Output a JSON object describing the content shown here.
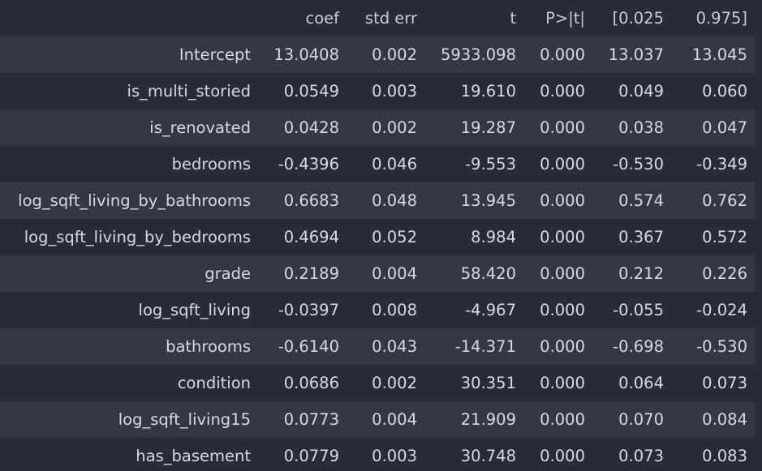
{
  "table": {
    "columns": [
      "",
      "coef",
      "std err",
      "t",
      "P>|t|",
      "[0.025",
      "0.975]"
    ],
    "rows": [
      {
        "name": "Intercept",
        "values": [
          "13.0408",
          "0.002",
          "5933.098",
          "0.000",
          "13.037",
          "13.045"
        ]
      },
      {
        "name": "is_multi_storied",
        "values": [
          "0.0549",
          "0.003",
          "19.610",
          "0.000",
          "0.049",
          "0.060"
        ]
      },
      {
        "name": "is_renovated",
        "values": [
          "0.0428",
          "0.002",
          "19.287",
          "0.000",
          "0.038",
          "0.047"
        ]
      },
      {
        "name": "bedrooms",
        "values": [
          "-0.4396",
          "0.046",
          "-9.553",
          "0.000",
          "-0.530",
          "-0.349"
        ]
      },
      {
        "name": "log_sqft_living_by_bathrooms",
        "values": [
          "0.6683",
          "0.048",
          "13.945",
          "0.000",
          "0.574",
          "0.762"
        ]
      },
      {
        "name": "log_sqft_living_by_bedrooms",
        "values": [
          "0.4694",
          "0.052",
          "8.984",
          "0.000",
          "0.367",
          "0.572"
        ]
      },
      {
        "name": "grade",
        "values": [
          "0.2189",
          "0.004",
          "58.420",
          "0.000",
          "0.212",
          "0.226"
        ]
      },
      {
        "name": "log_sqft_living",
        "values": [
          "-0.0397",
          "0.008",
          "-4.967",
          "0.000",
          "-0.055",
          "-0.024"
        ]
      },
      {
        "name": "bathrooms",
        "values": [
          "-0.6140",
          "0.043",
          "-14.371",
          "0.000",
          "-0.698",
          "-0.530"
        ]
      },
      {
        "name": "condition",
        "values": [
          "0.0686",
          "0.002",
          "30.351",
          "0.000",
          "0.064",
          "0.073"
        ]
      },
      {
        "name": "log_sqft_living15",
        "values": [
          "0.0773",
          "0.004",
          "21.909",
          "0.000",
          "0.070",
          "0.084"
        ]
      },
      {
        "name": "has_basement",
        "values": [
          "0.0779",
          "0.003",
          "30.748",
          "0.000",
          "0.073",
          "0.083"
        ]
      }
    ]
  },
  "colors": {
    "background": "#282c34",
    "row_alt": "#333842",
    "text": "#d7dae0"
  }
}
